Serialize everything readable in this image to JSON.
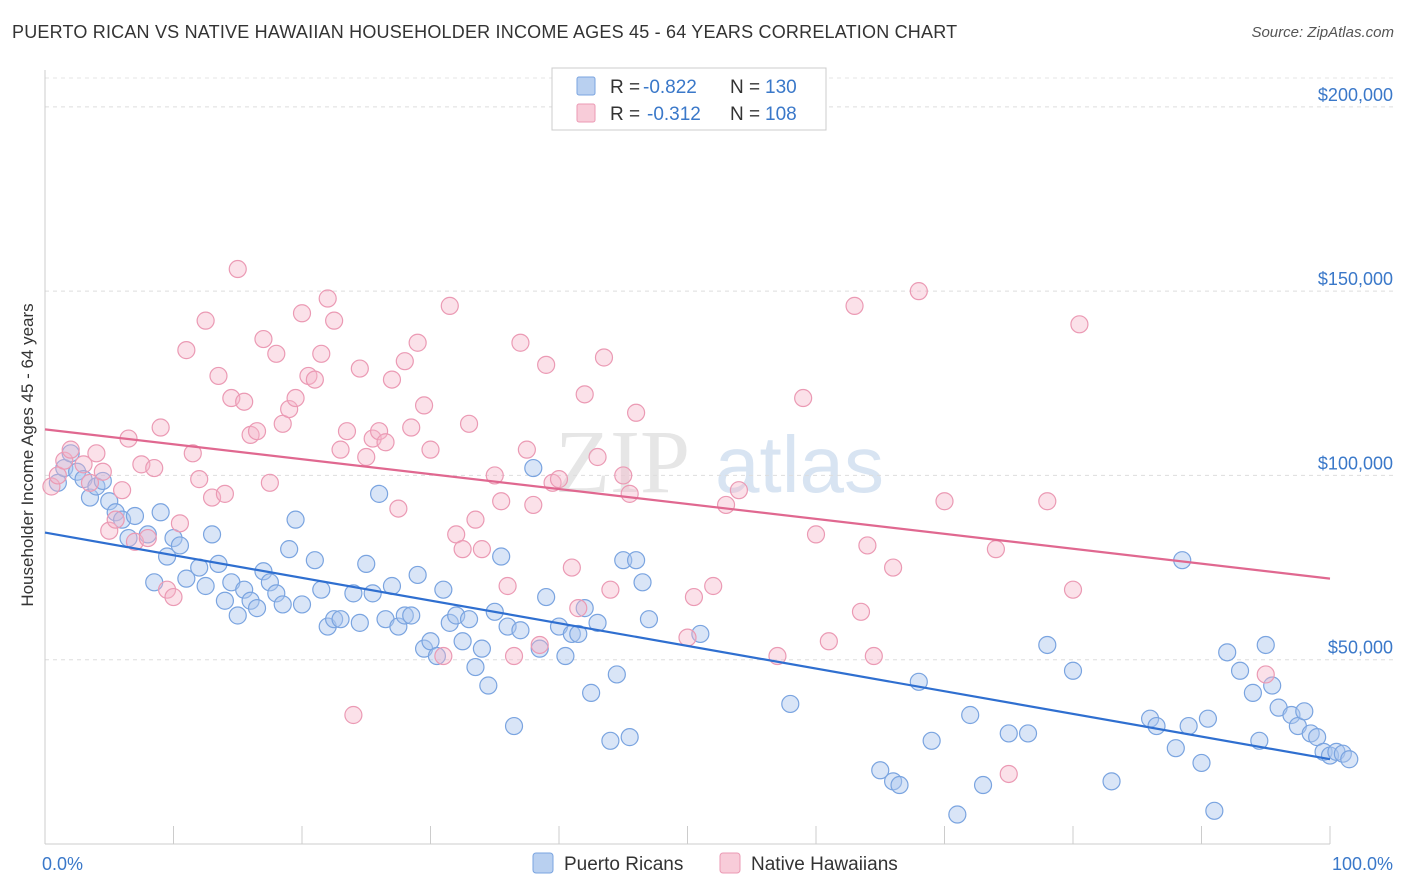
{
  "title": "PUERTO RICAN VS NATIVE HAWAIIAN HOUSEHOLDER INCOME AGES 45 - 64 YEARS CORRELATION CHART",
  "source": "Source: ZipAtlas.com",
  "watermark": {
    "zip": "ZIP",
    "atlas": "atlas"
  },
  "chart_data": {
    "type": "scatter",
    "ylabel": "Householder Income Ages 45 - 64 years",
    "xlim": [
      0,
      100
    ],
    "ylim": [
      0,
      210000
    ],
    "x_tick_labels": [
      "0.0%",
      "100.0%"
    ],
    "y_ticks": [
      {
        "value": 50000,
        "label": "$50,000"
      },
      {
        "value": 100000,
        "label": "$100,000"
      },
      {
        "value": 150000,
        "label": "$150,000"
      },
      {
        "value": 200000,
        "label": "$200,000"
      }
    ],
    "grid": "horizontal dashed",
    "legend_placement": "top-center",
    "series": [
      {
        "name": "Puerto Ricans",
        "color": "#8fb4e8",
        "line_color": "#2f6fd0",
        "stats": {
          "r_label": "R =",
          "r": "-0.822",
          "n_label": "N =",
          "n": "130"
        },
        "trend": {
          "x": [
            0,
            100
          ],
          "y": [
            84500,
            23000
          ]
        },
        "points": [
          [
            1,
            98000
          ],
          [
            1.5,
            102000
          ],
          [
            2,
            106000
          ],
          [
            2.5,
            101000
          ],
          [
            3,
            99000
          ],
          [
            3.5,
            94000
          ],
          [
            4,
            97000
          ],
          [
            4.5,
            98500
          ],
          [
            5,
            93000
          ],
          [
            5.5,
            90000
          ],
          [
            6,
            88000
          ],
          [
            6.5,
            83000
          ],
          [
            7,
            89000
          ],
          [
            8,
            84000
          ],
          [
            8.5,
            71000
          ],
          [
            9,
            90000
          ],
          [
            9.5,
            78000
          ],
          [
            10,
            83000
          ],
          [
            10.5,
            81000
          ],
          [
            11,
            72000
          ],
          [
            12,
            75000
          ],
          [
            12.5,
            70000
          ],
          [
            13,
            84000
          ],
          [
            13.5,
            76000
          ],
          [
            14,
            66000
          ],
          [
            14.5,
            71000
          ],
          [
            15,
            62000
          ],
          [
            15.5,
            69000
          ],
          [
            16,
            66000
          ],
          [
            16.5,
            64000
          ],
          [
            17,
            74000
          ],
          [
            17.5,
            71000
          ],
          [
            18,
            68000
          ],
          [
            18.5,
            65000
          ],
          [
            19,
            80000
          ],
          [
            19.5,
            88000
          ],
          [
            20,
            65000
          ],
          [
            21,
            77000
          ],
          [
            21.5,
            69000
          ],
          [
            22,
            59000
          ],
          [
            22.5,
            61000
          ],
          [
            23,
            61000
          ],
          [
            24,
            68000
          ],
          [
            24.5,
            60000
          ],
          [
            25,
            76000
          ],
          [
            25.5,
            68000
          ],
          [
            26,
            95000
          ],
          [
            26.5,
            61000
          ],
          [
            27,
            70000
          ],
          [
            27.5,
            59000
          ],
          [
            28,
            62000
          ],
          [
            28.5,
            62000
          ],
          [
            29,
            73000
          ],
          [
            29.5,
            53000
          ],
          [
            30,
            55000
          ],
          [
            30.5,
            51000
          ],
          [
            31,
            69000
          ],
          [
            31.5,
            60000
          ],
          [
            32,
            62000
          ],
          [
            32.5,
            55000
          ],
          [
            33,
            61000
          ],
          [
            33.5,
            48000
          ],
          [
            34,
            53000
          ],
          [
            34.5,
            43000
          ],
          [
            35,
            63000
          ],
          [
            35.5,
            78000
          ],
          [
            36,
            59000
          ],
          [
            36.5,
            32000
          ],
          [
            37,
            58000
          ],
          [
            38,
            102000
          ],
          [
            38.5,
            53000
          ],
          [
            39,
            67000
          ],
          [
            40,
            59000
          ],
          [
            40.5,
            51000
          ],
          [
            41,
            57000
          ],
          [
            41.5,
            57000
          ],
          [
            42,
            64000
          ],
          [
            42.5,
            41000
          ],
          [
            43,
            60000
          ],
          [
            44,
            28000
          ],
          [
            44.5,
            46000
          ],
          [
            45,
            77000
          ],
          [
            45.5,
            29000
          ],
          [
            46,
            77000
          ],
          [
            46.5,
            71000
          ],
          [
            47,
            61000
          ],
          [
            51,
            57000
          ],
          [
            58,
            38000
          ],
          [
            65,
            20000
          ],
          [
            66,
            17000
          ],
          [
            66.5,
            16000
          ],
          [
            68,
            44000
          ],
          [
            69,
            28000
          ],
          [
            71,
            8000
          ],
          [
            72,
            35000
          ],
          [
            73,
            16000
          ],
          [
            75,
            30000
          ],
          [
            76.5,
            30000
          ],
          [
            78,
            54000
          ],
          [
            80,
            47000
          ],
          [
            83,
            17000
          ],
          [
            86,
            34000
          ],
          [
            86.5,
            32000
          ],
          [
            88,
            26000
          ],
          [
            88.5,
            77000
          ],
          [
            89,
            32000
          ],
          [
            90,
            22000
          ],
          [
            90.5,
            34000
          ],
          [
            91,
            9000
          ],
          [
            92,
            52000
          ],
          [
            93,
            47000
          ],
          [
            94,
            41000
          ],
          [
            94.5,
            28000
          ],
          [
            95,
            54000
          ],
          [
            95.5,
            43000
          ],
          [
            96,
            37000
          ],
          [
            97,
            35000
          ],
          [
            97.5,
            32000
          ],
          [
            98,
            36000
          ],
          [
            98.5,
            30000
          ],
          [
            99,
            29000
          ],
          [
            99.5,
            25000
          ],
          [
            100,
            24000
          ],
          [
            100.5,
            25000
          ],
          [
            101,
            24500
          ],
          [
            101.5,
            23000
          ]
        ]
      },
      {
        "name": "Native Hawaiians",
        "color": "#f5b4c8",
        "line_color": "#e06890",
        "stats": {
          "r_label": "R =",
          "r": "-0.312",
          "n_label": "N =",
          "n": "108"
        },
        "trend": {
          "x": [
            0,
            100
          ],
          "y": [
            112500,
            72000
          ]
        },
        "points": [
          [
            0.5,
            97000
          ],
          [
            1,
            100000
          ],
          [
            1.5,
            104000
          ],
          [
            2,
            107000
          ],
          [
            3,
            103000
          ],
          [
            3.5,
            98000
          ],
          [
            4,
            106000
          ],
          [
            4.5,
            101000
          ],
          [
            5,
            85000
          ],
          [
            5.5,
            88000
          ],
          [
            6,
            96000
          ],
          [
            6.5,
            110000
          ],
          [
            7,
            82000
          ],
          [
            7.5,
            103000
          ],
          [
            8,
            83000
          ],
          [
            8.5,
            102000
          ],
          [
            9,
            113000
          ],
          [
            9.5,
            69000
          ],
          [
            10,
            67000
          ],
          [
            10.5,
            87000
          ],
          [
            11,
            134000
          ],
          [
            11.5,
            106000
          ],
          [
            12,
            99000
          ],
          [
            12.5,
            142000
          ],
          [
            13,
            94000
          ],
          [
            13.5,
            127000
          ],
          [
            14,
            95000
          ],
          [
            14.5,
            121000
          ],
          [
            15,
            156000
          ],
          [
            15.5,
            120000
          ],
          [
            16,
            111000
          ],
          [
            16.5,
            112000
          ],
          [
            17,
            137000
          ],
          [
            17.5,
            98000
          ],
          [
            18,
            133000
          ],
          [
            18.5,
            114000
          ],
          [
            19,
            118000
          ],
          [
            19.5,
            121000
          ],
          [
            20,
            144000
          ],
          [
            20.5,
            127000
          ],
          [
            21,
            126000
          ],
          [
            21.5,
            133000
          ],
          [
            22,
            148000
          ],
          [
            22.5,
            142000
          ],
          [
            23,
            107000
          ],
          [
            23.5,
            112000
          ],
          [
            24,
            35000
          ],
          [
            24.5,
            129000
          ],
          [
            25,
            105000
          ],
          [
            25.5,
            110000
          ],
          [
            26,
            112000
          ],
          [
            26.5,
            109000
          ],
          [
            27,
            126000
          ],
          [
            27.5,
            91000
          ],
          [
            28,
            131000
          ],
          [
            28.5,
            113000
          ],
          [
            29,
            136000
          ],
          [
            29.5,
            119000
          ],
          [
            30,
            107000
          ],
          [
            31,
            51000
          ],
          [
            31.5,
            146000
          ],
          [
            32,
            84000
          ],
          [
            32.5,
            80000
          ],
          [
            33,
            114000
          ],
          [
            33.5,
            88000
          ],
          [
            34,
            80000
          ],
          [
            35,
            100000
          ],
          [
            35.5,
            93000
          ],
          [
            36,
            70000
          ],
          [
            36.5,
            51000
          ],
          [
            37,
            136000
          ],
          [
            37.5,
            107000
          ],
          [
            38,
            92000
          ],
          [
            38.5,
            54000
          ],
          [
            39,
            130000
          ],
          [
            39.5,
            98000
          ],
          [
            40,
            99000
          ],
          [
            41,
            75000
          ],
          [
            41.5,
            64000
          ],
          [
            42,
            122000
          ],
          [
            43,
            105000
          ],
          [
            43.5,
            132000
          ],
          [
            44,
            69000
          ],
          [
            45,
            100000
          ],
          [
            45.5,
            95000
          ],
          [
            46,
            117000
          ],
          [
            50,
            56000
          ],
          [
            50.5,
            67000
          ],
          [
            52,
            70000
          ],
          [
            53,
            92000
          ],
          [
            54,
            96000
          ],
          [
            57,
            51000
          ],
          [
            59,
            121000
          ],
          [
            60,
            84000
          ],
          [
            61,
            55000
          ],
          [
            63,
            146000
          ],
          [
            63.5,
            63000
          ],
          [
            64,
            81000
          ],
          [
            64.5,
            51000
          ],
          [
            66,
            75000
          ],
          [
            68,
            150000
          ],
          [
            70,
            93000
          ],
          [
            74,
            80000
          ],
          [
            75,
            19000
          ],
          [
            78,
            93000
          ],
          [
            80,
            69000
          ],
          [
            80.5,
            141000
          ],
          [
            95,
            46000
          ]
        ]
      }
    ]
  }
}
